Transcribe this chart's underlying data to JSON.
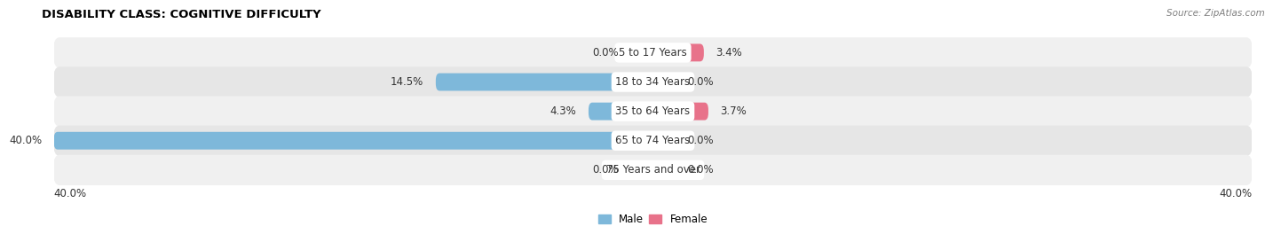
{
  "title": "DISABILITY CLASS: COGNITIVE DIFFICULTY",
  "source": "Source: ZipAtlas.com",
  "categories": [
    "5 to 17 Years",
    "18 to 34 Years",
    "35 to 64 Years",
    "65 to 74 Years",
    "75 Years and over"
  ],
  "male_values": [
    0.0,
    14.5,
    4.3,
    40.0,
    0.0
  ],
  "female_values": [
    3.4,
    0.0,
    3.7,
    0.0,
    0.0
  ],
  "male_color": "#7eb8da",
  "female_color": "#e8728a",
  "male_color_light": "#b8d9ed",
  "female_color_light": "#f0aabb",
  "row_bg_odd": "#f0f0f0",
  "row_bg_even": "#e6e6e6",
  "max_val": 40.0,
  "label_fontsize": 8.5,
  "title_fontsize": 9.5,
  "source_fontsize": 7.5,
  "axis_label_fontsize": 8.5,
  "legend_fontsize": 8.5,
  "bar_height": 0.6,
  "zero_stub": 1.5,
  "axis_left_label": "40.0%",
  "axis_right_label": "40.0%"
}
